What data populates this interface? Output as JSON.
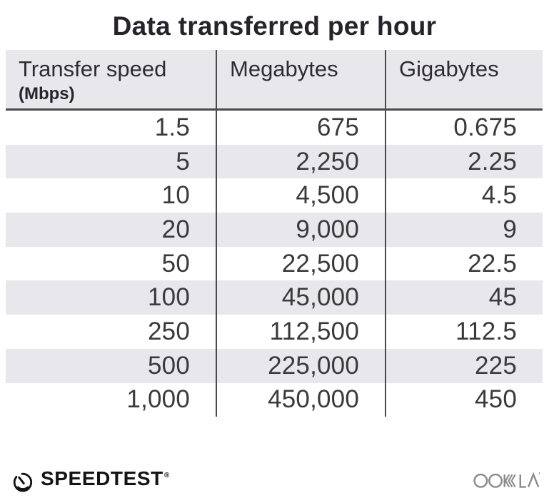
{
  "title": "Data transferred per hour",
  "table": {
    "columns": [
      {
        "label": "Transfer speed",
        "sublabel": "(Mbps)"
      },
      {
        "label": "Megabytes"
      },
      {
        "label": "Gigabytes"
      }
    ],
    "rows": [
      [
        "1.5",
        "675",
        "0.675"
      ],
      [
        "5",
        "2,250",
        "2.25"
      ],
      [
        "10",
        "4,500",
        "4.5"
      ],
      [
        "20",
        "9,000",
        "9"
      ],
      [
        "50",
        "22,500",
        "22.5"
      ],
      [
        "100",
        "45,000",
        "45"
      ],
      [
        "250",
        "112,500",
        "112.5"
      ],
      [
        "500",
        "225,000",
        "225"
      ],
      [
        "1,000",
        "450,000",
        "450"
      ]
    ]
  },
  "footer": {
    "speedtest_label": "SPEEDTEST",
    "speedtest_trademark": "®",
    "ookla_label": "OOKLA"
  },
  "colors": {
    "stripe_gray": "#e8e8ec",
    "divider_dark": "#4a4a4a",
    "title_text": "#26242a",
    "body_text": "#3a3a3c",
    "speedtest_black": "#141414",
    "ookla_gray": "#8b8b8b"
  },
  "chart_data": {
    "type": "table",
    "title": "Data transferred per hour",
    "columns": [
      "Transfer speed (Mbps)",
      "Megabytes",
      "Gigabytes"
    ],
    "rows": [
      [
        1.5,
        675,
        0.675
      ],
      [
        5,
        2250,
        2.25
      ],
      [
        10,
        4500,
        4.5
      ],
      [
        20,
        9000,
        9
      ],
      [
        50,
        22500,
        22.5
      ],
      [
        100,
        45000,
        45
      ],
      [
        250,
        112500,
        112.5
      ],
      [
        500,
        225000,
        225
      ],
      [
        1000,
        450000,
        450
      ]
    ],
    "layout": {
      "grid": "vertical column dividers, alternating row stripes",
      "legend": "none"
    }
  }
}
